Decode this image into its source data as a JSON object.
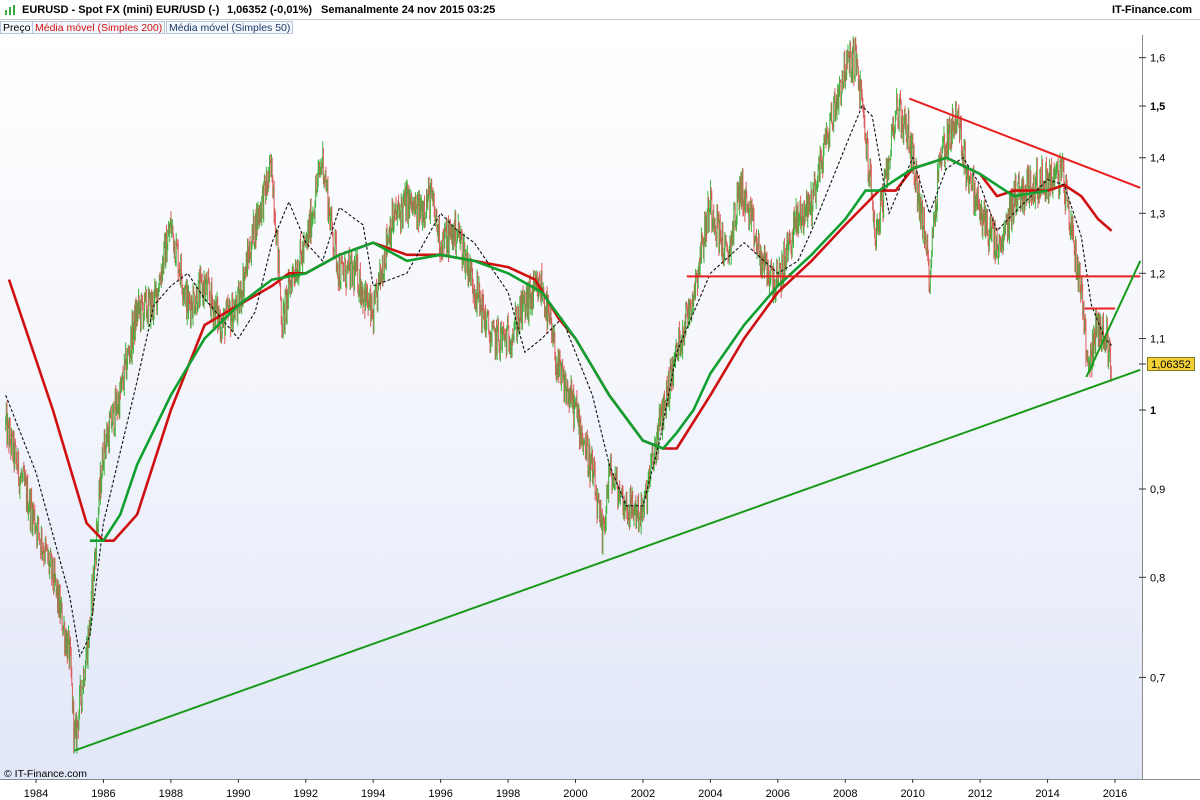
{
  "header": {
    "symbol": "EURUSD - Spot FX (mini) EUR/USD (-)",
    "quote": "1,06352 (-0,01%)",
    "period": "Semanalmente  24 nov 2015 03:25",
    "brand": "IT-Finance.com"
  },
  "legend": {
    "price": "Preço",
    "ma200": "Média móvel (Simples 200)",
    "ma50": "Média móvel (Simples 50)"
  },
  "footer": {
    "copyright": "© IT-Finance.com"
  },
  "price_tag": "1,06352",
  "colors": {
    "up": "#3cb43c",
    "down": "#dc5a5a",
    "ma200": "#d01010",
    "ma50": "#10a030",
    "trend_red": "#e82020",
    "trend_green": "#1a9a1a",
    "tag": "#f2d037"
  },
  "chart_data": {
    "type": "line",
    "title": "EURUSD - Spot FX (mini) EUR/USD (-)",
    "scale": "log",
    "ylim": [
      0.62,
      1.65
    ],
    "xlim": [
      1983.1,
      2016.75
    ],
    "yticks": [
      {
        "value": 0.7,
        "label": "0,7",
        "bold": false
      },
      {
        "value": 0.8,
        "label": "0,8",
        "bold": false
      },
      {
        "value": 0.9,
        "label": "0,9",
        "bold": false
      },
      {
        "value": 1.0,
        "label": "1",
        "bold": true
      },
      {
        "value": 1.1,
        "label": "1,1",
        "bold": false
      },
      {
        "value": 1.2,
        "label": "1,2",
        "bold": false
      },
      {
        "value": 1.3,
        "label": "1,3",
        "bold": false
      },
      {
        "value": 1.4,
        "label": "1,4",
        "bold": false
      },
      {
        "value": 1.5,
        "label": "1,5",
        "bold": true
      },
      {
        "value": 1.6,
        "label": "1,6",
        "bold": false
      }
    ],
    "xticks": [
      "1984",
      "1986",
      "1988",
      "1990",
      "1992",
      "1994",
      "1996",
      "1998",
      "2000",
      "2002",
      "2004",
      "2006",
      "2008",
      "2010",
      "2012",
      "2014",
      "2016"
    ],
    "series": [
      {
        "name": "Preço",
        "x": [
          1983.1,
          1983.5,
          1984.0,
          1984.5,
          1985.0,
          1985.15,
          1985.6,
          1986.0,
          1986.5,
          1987.0,
          1987.5,
          1988.0,
          1988.5,
          1989.0,
          1989.5,
          1990.0,
          1990.5,
          1991.0,
          1991.3,
          1991.6,
          1992.0,
          1992.5,
          1992.75,
          1993.0,
          1993.5,
          1994.0,
          1994.5,
          1995.0,
          1995.3,
          1995.7,
          1996.0,
          1996.5,
          1997.0,
          1997.5,
          1998.0,
          1998.5,
          1999.0,
          1999.5,
          2000.0,
          2000.5,
          2000.8,
          2001.0,
          2001.5,
          2002.0,
          2002.5,
          2003.0,
          2003.5,
          2004.0,
          2004.5,
          2004.9,
          2005.5,
          2006.0,
          2006.5,
          2007.0,
          2007.5,
          2008.0,
          2008.3,
          2008.5,
          2008.9,
          2009.2,
          2009.5,
          2009.9,
          2010.5,
          2010.8,
          2011.3,
          2011.6,
          2012.0,
          2012.6,
          2013.0,
          2013.5,
          2014.0,
          2014.45,
          2014.8,
          2015.0,
          2015.2,
          2015.5,
          2015.75,
          2015.9
        ],
        "values": [
          0.98,
          0.92,
          0.86,
          0.8,
          0.72,
          0.64,
          0.75,
          0.95,
          1.02,
          1.14,
          1.15,
          1.28,
          1.15,
          1.18,
          1.12,
          1.15,
          1.28,
          1.38,
          1.12,
          1.2,
          1.24,
          1.4,
          1.28,
          1.2,
          1.2,
          1.13,
          1.28,
          1.32,
          1.3,
          1.33,
          1.25,
          1.27,
          1.18,
          1.1,
          1.1,
          1.15,
          1.18,
          1.05,
          1.0,
          0.92,
          0.84,
          0.92,
          0.88,
          0.87,
          0.98,
          1.08,
          1.17,
          1.32,
          1.22,
          1.35,
          1.22,
          1.18,
          1.28,
          1.32,
          1.45,
          1.58,
          1.6,
          1.5,
          1.26,
          1.35,
          1.5,
          1.44,
          1.2,
          1.4,
          1.48,
          1.38,
          1.3,
          1.23,
          1.33,
          1.35,
          1.36,
          1.37,
          1.24,
          1.18,
          1.06,
          1.12,
          1.1,
          1.06
        ]
      },
      {
        "name": "Média móvel (Simples 200)",
        "x": [
          1983.2,
          1984.5,
          1985.5,
          1986.0,
          1986.3,
          1987.0,
          1988.0,
          1989.0,
          1990.0,
          1991.0,
          1991.5,
          1992.0,
          1993.0,
          1994.0,
          1995.0,
          1996.0,
          1997.0,
          1998.0,
          1998.8,
          1999.5,
          2000.0,
          2001.0,
          2002.0,
          2002.6,
          2003.0,
          2004.0,
          2005.0,
          2006.0,
          2007.0,
          2008.0,
          2009.0,
          2009.5,
          2010.0,
          2011.0,
          2012.0,
          2012.5,
          2013.0,
          2014.0,
          2014.5,
          2015.0,
          2015.5,
          2015.9
        ],
        "values": [
          1.19,
          1.0,
          0.86,
          0.84,
          0.84,
          0.87,
          1.0,
          1.12,
          1.15,
          1.18,
          1.2,
          1.2,
          1.23,
          1.25,
          1.23,
          1.23,
          1.22,
          1.21,
          1.19,
          1.13,
          1.1,
          1.02,
          0.96,
          0.95,
          0.95,
          1.02,
          1.1,
          1.17,
          1.22,
          1.28,
          1.34,
          1.34,
          1.38,
          1.4,
          1.37,
          1.33,
          1.34,
          1.34,
          1.35,
          1.33,
          1.29,
          1.27
        ]
      },
      {
        "name": "Média móvel (Simples 50)",
        "x": [
          1983.1,
          1984.0,
          1985.0,
          1985.3,
          1985.6,
          1986.0,
          1987.0,
          1987.5,
          1988.0,
          1988.5,
          1989.0,
          1990.0,
          1990.5,
          1991.0,
          1991.5,
          1992.0,
          1992.5,
          1993.0,
          1993.7,
          1994.0,
          1995.0,
          1996.0,
          1996.5,
          1997.0,
          1998.0,
          1998.5,
          1999.0,
          1999.6,
          2000.5,
          2001.0,
          2001.5,
          2002.0,
          2002.5,
          2003.0,
          2004.0,
          2005.0,
          2006.0,
          2006.6,
          2007.0,
          2008.0,
          2008.5,
          2008.8,
          2009.3,
          2010.0,
          2010.5,
          2011.0,
          2011.5,
          2012.0,
          2012.5,
          2013.0,
          2014.0,
          2014.5,
          2015.0,
          2015.3,
          2015.7,
          2015.9
        ],
        "values": [
          1.02,
          0.92,
          0.78,
          0.72,
          0.74,
          0.86,
          1.04,
          1.15,
          1.18,
          1.2,
          1.16,
          1.1,
          1.14,
          1.25,
          1.32,
          1.25,
          1.22,
          1.31,
          1.28,
          1.18,
          1.2,
          1.3,
          1.27,
          1.25,
          1.17,
          1.08,
          1.1,
          1.13,
          1.02,
          0.93,
          0.88,
          0.88,
          0.96,
          1.08,
          1.2,
          1.25,
          1.2,
          1.22,
          1.27,
          1.42,
          1.5,
          1.48,
          1.3,
          1.4,
          1.3,
          1.38,
          1.4,
          1.35,
          1.27,
          1.3,
          1.36,
          1.35,
          1.26,
          1.15,
          1.1,
          1.09
        ]
      }
    ],
    "lines": [
      {
        "name": "trend-red-down",
        "color": "#e82020",
        "x": [
          2009.9,
          2016.75
        ],
        "values": [
          1.515,
          1.345
        ]
      },
      {
        "name": "resistance-1.195",
        "color": "#e82020",
        "x": [
          2003.3,
          2016.75
        ],
        "values": [
          1.195,
          1.195
        ]
      },
      {
        "name": "resistance-1.145",
        "color": "#e82020",
        "x": [
          2015.1,
          2016.0
        ],
        "values": [
          1.145,
          1.145
        ]
      },
      {
        "name": "support-long",
        "color": "#1a9a1a",
        "x": [
          1985.15,
          2016.75
        ],
        "values": [
          0.635,
          1.055
        ]
      },
      {
        "name": "support-short",
        "color": "#1a9a1a",
        "x": [
          2015.15,
          2016.75
        ],
        "values": [
          1.045,
          1.22
        ]
      }
    ]
  }
}
